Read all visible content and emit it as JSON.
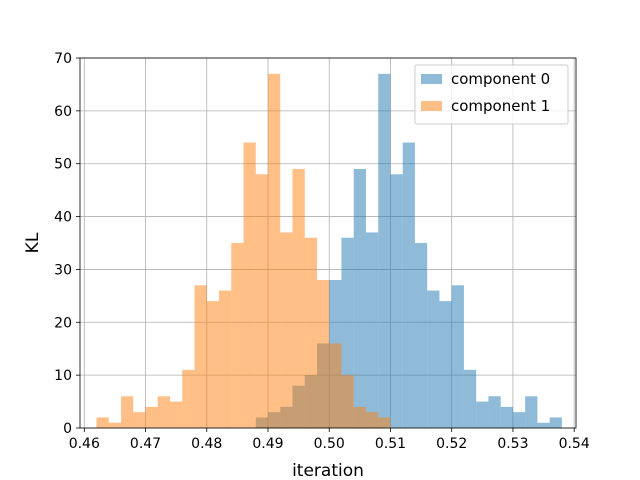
{
  "chart_data": {
    "type": "histogram",
    "xlabel": "iteration",
    "ylabel": "KL",
    "xlim": [
      0.4593,
      0.5403
    ],
    "ylim": [
      0,
      70
    ],
    "xticks": [
      "0.46",
      "0.47",
      "0.48",
      "0.49",
      "0.50",
      "0.51",
      "0.52",
      "0.53",
      "0.54"
    ],
    "yticks": [
      "0",
      "10",
      "20",
      "30",
      "40",
      "50",
      "60",
      "70"
    ],
    "grid": true,
    "legend_position": "top-right",
    "bin_width": 0.002,
    "series": [
      {
        "name": "component 0",
        "color": "#1f77b4",
        "alpha": 0.5,
        "bins": [
          [
            0.489,
            2
          ],
          [
            0.491,
            3
          ],
          [
            0.493,
            4
          ],
          [
            0.495,
            8
          ],
          [
            0.497,
            10
          ],
          [
            0.499,
            16
          ],
          [
            0.501,
            28
          ],
          [
            0.503,
            36
          ],
          [
            0.505,
            49
          ],
          [
            0.507,
            37
          ],
          [
            0.509,
            67
          ],
          [
            0.511,
            48
          ],
          [
            0.513,
            54
          ],
          [
            0.515,
            35
          ],
          [
            0.517,
            26
          ],
          [
            0.519,
            24
          ],
          [
            0.521,
            27
          ],
          [
            0.523,
            11
          ],
          [
            0.525,
            5
          ],
          [
            0.527,
            6
          ],
          [
            0.529,
            4
          ],
          [
            0.531,
            3
          ],
          [
            0.533,
            6
          ],
          [
            0.535,
            1
          ],
          [
            0.537,
            2
          ]
        ]
      },
      {
        "name": "component 1",
        "color": "#ff7f0e",
        "alpha": 0.5,
        "bins": [
          [
            0.463,
            2
          ],
          [
            0.465,
            1
          ],
          [
            0.467,
            6
          ],
          [
            0.469,
            3
          ],
          [
            0.471,
            4
          ],
          [
            0.473,
            6
          ],
          [
            0.475,
            5
          ],
          [
            0.477,
            11
          ],
          [
            0.479,
            27
          ],
          [
            0.481,
            24
          ],
          [
            0.483,
            26
          ],
          [
            0.485,
            35
          ],
          [
            0.487,
            54
          ],
          [
            0.489,
            48
          ],
          [
            0.491,
            67
          ],
          [
            0.493,
            37
          ],
          [
            0.495,
            49
          ],
          [
            0.497,
            36
          ],
          [
            0.499,
            28
          ],
          [
            0.501,
            16
          ],
          [
            0.503,
            10
          ],
          [
            0.505,
            4
          ],
          [
            0.507,
            3
          ],
          [
            0.509,
            2
          ]
        ]
      }
    ]
  }
}
